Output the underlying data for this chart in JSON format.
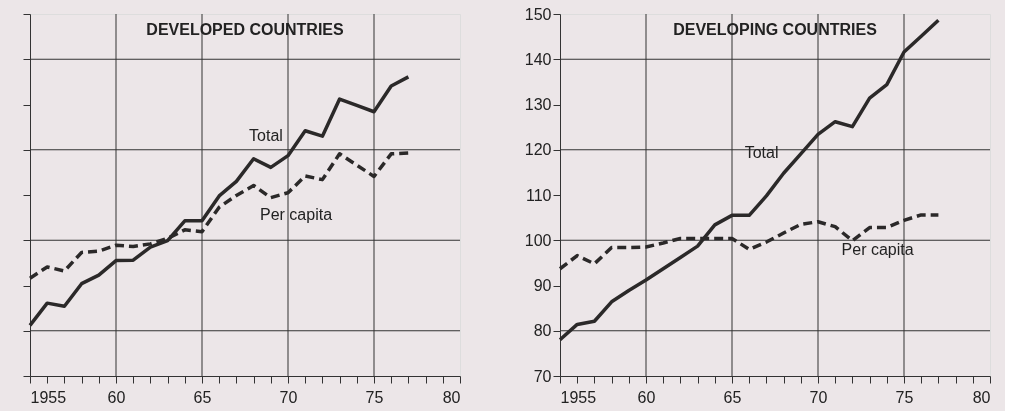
{
  "chart_data": [
    {
      "type": "line",
      "title": "DEVELOPED COUNTRIES",
      "x": [
        1955,
        1956,
        1957,
        1958,
        1959,
        1960,
        1961,
        1962,
        1963,
        1964,
        1965,
        1966,
        1967,
        1968,
        1969,
        1970,
        1971,
        1972,
        1973,
        1974,
        1975,
        1976,
        1977
      ],
      "series": [
        {
          "color": "#2b2929",
          "line_style": "solid",
          "values": [
            81.2,
            86.1,
            85.4,
            90.4,
            92.3,
            95.5,
            95.6,
            98.5,
            99.9,
            104.3,
            104.3,
            109.8,
            113.0,
            118.0,
            116.1,
            118.7,
            124.2,
            123.0,
            131.2,
            129.8,
            128.4,
            134.1,
            136.1
          ]
        },
        {
          "color": "#2b2929",
          "line_style": "dashed",
          "values": [
            91.6,
            94.1,
            93.2,
            97.3,
            97.6,
            98.9,
            98.6,
            99.2,
            100.4,
            102.3,
            101.9,
            107.3,
            109.9,
            112.1,
            109.4,
            110.5,
            114.2,
            113.4,
            119.1,
            116.6,
            114.1,
            119.1,
            119.3
          ]
        }
      ],
      "annotations": [
        {
          "text": "Total",
          "x": 1970,
          "y": 118.7
        },
        {
          "text": "Per capita",
          "x": 1970,
          "y": 110.5
        }
      ],
      "xlim": [
        1955,
        1980
      ],
      "ylim": [
        70,
        150
      ],
      "xticks": [
        1955,
        {
          "value": 1956,
          "label": null
        },
        {
          "value": 1957,
          "label": null
        },
        {
          "value": 1958,
          "label": null
        },
        {
          "value": 1959,
          "label": null
        },
        {
          "value": 1960,
          "label": "60"
        },
        {
          "value": 1961,
          "label": null
        },
        {
          "value": 1962,
          "label": null
        },
        {
          "value": 1963,
          "label": null
        },
        {
          "value": 1964,
          "label": null
        },
        {
          "value": 1965,
          "label": "65"
        },
        {
          "value": 1966,
          "label": null
        },
        {
          "value": 1967,
          "label": null
        },
        {
          "value": 1968,
          "label": null
        },
        {
          "value": 1969,
          "label": null
        },
        {
          "value": 1970,
          "label": "70"
        },
        {
          "value": 1971,
          "label": null
        },
        {
          "value": 1972,
          "label": null
        },
        {
          "value": 1973,
          "label": null
        },
        {
          "value": 1974,
          "label": null
        },
        {
          "value": 1975,
          "label": "75"
        },
        {
          "value": 1976,
          "label": null
        },
        {
          "value": 1977,
          "label": null
        },
        {
          "value": 1978,
          "label": null
        },
        {
          "value": 1979,
          "label": null
        },
        {
          "value": 1980,
          "label": "80"
        }
      ],
      "yticks": [
        70,
        80,
        90,
        100,
        110,
        120,
        130,
        140,
        150
      ],
      "tick_labels": "x",
      "grid": true
    },
    {
      "type": "line",
      "title": "DEVELOPING COUNTRIES",
      "x": [
        1955,
        1956,
        1957,
        1958,
        1959,
        1960,
        1961,
        1962,
        1963,
        1964,
        1965,
        1966,
        1967,
        1968,
        1969,
        1970,
        1971,
        1972,
        1973,
        1974,
        1975,
        1976,
        1977
      ],
      "series": [
        {
          "color": "#2b2929",
          "line_style": "solid",
          "values": [
            78.0,
            81.4,
            82.1,
            86.4,
            88.9,
            91.2,
            93.7,
            96.2,
            98.7,
            103.4,
            105.5,
            105.5,
            109.8,
            114.8,
            119.1,
            123.4,
            126.2,
            125.1,
            131.4,
            134.4,
            141.6,
            145.1,
            148.6
          ]
        },
        {
          "color": "#2b2929",
          "line_style": "dashed",
          "values": [
            93.7,
            96.6,
            94.8,
            98.4,
            98.4,
            98.5,
            99.4,
            100.4,
            100.4,
            100.4,
            100.4,
            98.0,
            99.6,
            101.6,
            103.5,
            104.1,
            103.0,
            99.9,
            102.8,
            102.8,
            104.4,
            105.6,
            105.6
          ]
        }
      ],
      "annotations": [
        {
          "text": "Total",
          "x": 1968,
          "y": 114.8
        },
        {
          "text": "Per capita",
          "x": 1973,
          "y": 102.8
        }
      ],
      "xlim": [
        1955,
        1980
      ],
      "ylim": [
        70,
        150
      ],
      "xticks": [
        1955,
        {
          "value": 1956,
          "label": null
        },
        {
          "value": 1957,
          "label": null
        },
        {
          "value": 1958,
          "label": null
        },
        {
          "value": 1959,
          "label": null
        },
        {
          "value": 1960,
          "label": "60"
        },
        {
          "value": 1961,
          "label": null
        },
        {
          "value": 1962,
          "label": null
        },
        {
          "value": 1963,
          "label": null
        },
        {
          "value": 1964,
          "label": null
        },
        {
          "value": 1965,
          "label": "65"
        },
        {
          "value": 1966,
          "label": null
        },
        {
          "value": 1967,
          "label": null
        },
        {
          "value": 1968,
          "label": null
        },
        {
          "value": 1969,
          "label": null
        },
        {
          "value": 1970,
          "label": "70"
        },
        {
          "value": 1971,
          "label": null
        },
        {
          "value": 1972,
          "label": null
        },
        {
          "value": 1973,
          "label": null
        },
        {
          "value": 1974,
          "label": null
        },
        {
          "value": 1975,
          "label": "75"
        },
        {
          "value": 1976,
          "label": null
        },
        {
          "value": 1977,
          "label": null
        },
        {
          "value": 1978,
          "label": null
        },
        {
          "value": 1979,
          "label": null
        },
        {
          "value": 1980,
          "label": "80"
        }
      ],
      "yticks": [
        70,
        80,
        90,
        100,
        110,
        120,
        130,
        140,
        150
      ],
      "grid": true
    }
  ]
}
